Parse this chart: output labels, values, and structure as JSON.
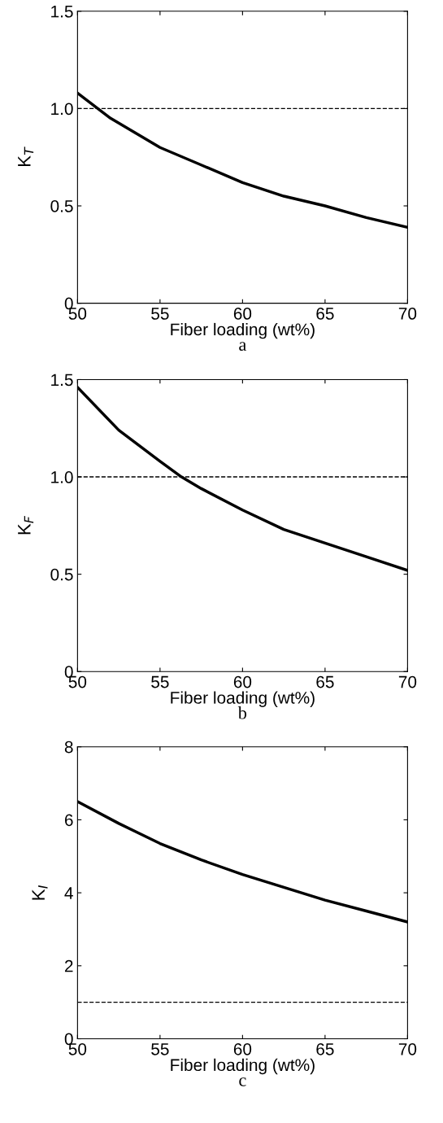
{
  "chart_data": [
    {
      "type": "line",
      "x": [
        50,
        52,
        55,
        57.5,
        60,
        62.5,
        65,
        67.5,
        70
      ],
      "series": [
        {
          "color": "#000000",
          "values": [
            1.08,
            0.95,
            0.8,
            0.71,
            0.62,
            0.55,
            0.5,
            0.44,
            0.39
          ]
        }
      ],
      "xlabel": "Fiber loading (wt%)",
      "ylabel": "K$_{T}$",
      "annotations": [
        "a"
      ],
      "xlim": [
        50,
        70
      ],
      "xticks": [
        50,
        55,
        60,
        65,
        70
      ],
      "ylim": [
        0,
        1.5
      ],
      "yticks": [
        0,
        0.5,
        {
          "value": 1,
          "label": "1.0"
        },
        1.5
      ],
      "ref_lines": [
        {
          "axis": "y",
          "value": 1,
          "color": "#000000",
          "line_style": "dashed"
        }
      ],
      "grid": false,
      "legend": false
    },
    {
      "type": "line",
      "x": [
        50,
        52.5,
        55,
        56.3,
        57.5,
        60,
        62.5,
        65,
        67.5,
        70
      ],
      "series": [
        {
          "color": "#000000",
          "values": [
            1.46,
            1.24,
            1.08,
            1.0,
            0.94,
            0.83,
            0.73,
            0.66,
            0.59,
            0.52
          ]
        }
      ],
      "xlabel": "Fiber loading (wt%)",
      "ylabel": "K$_{F}$",
      "annotations": [
        "b"
      ],
      "xlim": [
        50,
        70
      ],
      "xticks": [
        50,
        55,
        60,
        65,
        70
      ],
      "ylim": [
        0,
        1.5
      ],
      "yticks": [
        0,
        0.5,
        {
          "value": 1,
          "label": "1.0"
        },
        1.5
      ],
      "ref_lines": [
        {
          "axis": "y",
          "value": 1,
          "color": "#000000",
          "line_style": "dashed"
        }
      ],
      "grid": false,
      "legend": false
    },
    {
      "type": "line",
      "x": [
        50,
        52.5,
        55,
        57.5,
        60,
        62.5,
        65,
        67.5,
        70
      ],
      "series": [
        {
          "color": "#000000",
          "values": [
            6.5,
            5.9,
            5.35,
            4.9,
            4.5,
            4.15,
            3.8,
            3.5,
            3.2
          ]
        }
      ],
      "xlabel": "Fiber loading (wt%)",
      "ylabel": "K$_{I}$",
      "annotations": [
        "c"
      ],
      "xlim": [
        50,
        70
      ],
      "xticks": [
        50,
        55,
        60,
        65,
        70
      ],
      "ylim": [
        0,
        8
      ],
      "yticks": [
        0,
        2,
        4,
        6,
        8
      ],
      "ref_lines": [
        {
          "axis": "y",
          "value": 1,
          "color": "#000000",
          "line_style": "dashed"
        }
      ],
      "grid": false,
      "legend": false
    }
  ]
}
